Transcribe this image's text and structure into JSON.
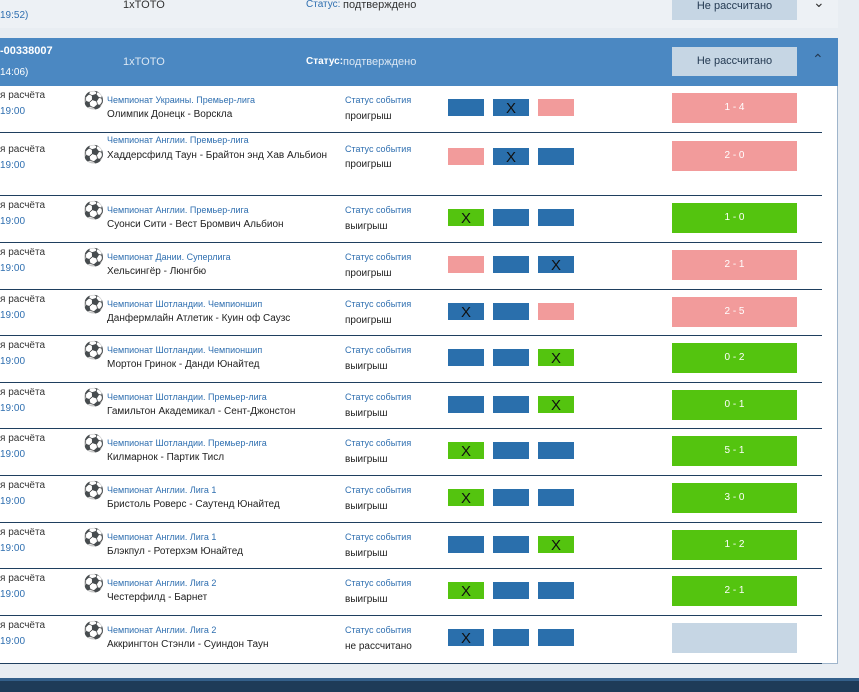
{
  "previous_coupon": {
    "time": "19:52)",
    "name": "1xTOTO",
    "status_label": "Статус:",
    "status_value": "подтверждено",
    "calc_label": "Не рассчитано",
    "chevron": "down"
  },
  "coupon": {
    "id": "-00338007",
    "time": "14:06)",
    "name": "1xTOTO",
    "status_label": "Статус:",
    "status_value": "подтверждено",
    "calc_label": "Не рассчитано",
    "chevron": "up"
  },
  "colors": {
    "blue": "#2a6fac",
    "red": "#f29b9b",
    "green": "#54c40f",
    "header": "#4b88c2",
    "pending": "#c6d6e4"
  },
  "events": [
    {
      "d1": "я расчёта",
      "d2": "19:00",
      "league": "Чемпионат Украины. Премьер-лига",
      "match": "Олимпик Донецк - Ворскла",
      "status_label": "Статус события",
      "status": "проигрыш",
      "cells": [
        {
          "c": "blue",
          "x": ""
        },
        {
          "c": "blue",
          "x": "X"
        },
        {
          "c": "red",
          "x": ""
        }
      ],
      "result": "1 - 4",
      "result_color": "red"
    },
    {
      "d1": "я расчёта",
      "d2": "19:00",
      "league": "Чемпионат Англии. Премьер-лига",
      "match": "Хаддерсфилд Таун - Брайтон энд Хав Альбион",
      "status_label": "Статус события",
      "status": "проигрыш",
      "cells": [
        {
          "c": "red",
          "x": ""
        },
        {
          "c": "blue",
          "x": "X"
        },
        {
          "c": "blue",
          "x": ""
        }
      ],
      "result": "2 - 0",
      "result_color": "red"
    },
    {
      "d1": "я расчёта",
      "d2": "19:00",
      "league": "Чемпионат Англии. Премьер-лига",
      "match": "Суонси Сити - Вест Бромвич Альбион",
      "status_label": "Статус события",
      "status": "выигрыш",
      "cells": [
        {
          "c": "green",
          "x": "X"
        },
        {
          "c": "blue",
          "x": ""
        },
        {
          "c": "blue",
          "x": ""
        }
      ],
      "result": "1 - 0",
      "result_color": "green"
    },
    {
      "d1": "я расчёта",
      "d2": "19:00",
      "league": "Чемпионат Дании. Суперлига",
      "match": "Хельсингёр - Люнгбю",
      "status_label": "Статус события",
      "status": "проигрыш",
      "cells": [
        {
          "c": "red",
          "x": ""
        },
        {
          "c": "blue",
          "x": ""
        },
        {
          "c": "blue",
          "x": "X"
        }
      ],
      "result": "2 - 1",
      "result_color": "red"
    },
    {
      "d1": "я расчёта",
      "d2": "19:00",
      "league": "Чемпионат Шотландии. Чемпионшип",
      "match": "Данфермлайн Атлетик - Куин оф Саузс",
      "status_label": "Статус события",
      "status": "проигрыш",
      "cells": [
        {
          "c": "blue",
          "x": "X"
        },
        {
          "c": "blue",
          "x": ""
        },
        {
          "c": "red",
          "x": ""
        }
      ],
      "result": "2 - 5",
      "result_color": "red"
    },
    {
      "d1": "я расчёта",
      "d2": "19:00",
      "league": "Чемпионат Шотландии. Чемпионшип",
      "match": "Мортон Гринок - Данди Юнайтед",
      "status_label": "Статус события",
      "status": "выигрыш",
      "cells": [
        {
          "c": "blue",
          "x": ""
        },
        {
          "c": "blue",
          "x": ""
        },
        {
          "c": "green",
          "x": "X"
        }
      ],
      "result": "0 - 2",
      "result_color": "green"
    },
    {
      "d1": "я расчёта",
      "d2": "19:00",
      "league": "Чемпионат Шотландии. Премьер-лига",
      "match": "Гамильтон Академикал - Сент-Джонстон",
      "status_label": "Статус события",
      "status": "выигрыш",
      "cells": [
        {
          "c": "blue",
          "x": ""
        },
        {
          "c": "blue",
          "x": ""
        },
        {
          "c": "green",
          "x": "X"
        }
      ],
      "result": "0 - 1",
      "result_color": "green"
    },
    {
      "d1": "я расчёта",
      "d2": "19:00",
      "league": "Чемпионат Шотландии. Премьер-лига",
      "match": "Килмарнок - Партик Тисл",
      "status_label": "Статус события",
      "status": "выигрыш",
      "cells": [
        {
          "c": "green",
          "x": "X"
        },
        {
          "c": "blue",
          "x": ""
        },
        {
          "c": "blue",
          "x": ""
        }
      ],
      "result": "5 - 1",
      "result_color": "green"
    },
    {
      "d1": "я расчёта",
      "d2": "19:00",
      "league": "Чемпионат Англии. Лига 1",
      "match": "Бристоль Роверс - Саутенд Юнайтед",
      "status_label": "Статус события",
      "status": "выигрыш",
      "cells": [
        {
          "c": "green",
          "x": "X"
        },
        {
          "c": "blue",
          "x": ""
        },
        {
          "c": "blue",
          "x": ""
        }
      ],
      "result": "3 - 0",
      "result_color": "green"
    },
    {
      "d1": "я расчёта",
      "d2": "19:00",
      "league": "Чемпионат Англии. Лига 1",
      "match": "Блэкпул - Ротерхэм Юнайтед",
      "status_label": "Статус события",
      "status": "выигрыш",
      "cells": [
        {
          "c": "blue",
          "x": ""
        },
        {
          "c": "blue",
          "x": ""
        },
        {
          "c": "green",
          "x": "X"
        }
      ],
      "result": "1 - 2",
      "result_color": "green"
    },
    {
      "d1": "я расчёта",
      "d2": "19:00",
      "league": "Чемпионат Англии. Лига 2",
      "match": "Честерфилд - Барнет",
      "status_label": "Статус события",
      "status": "выигрыш",
      "cells": [
        {
          "c": "green",
          "x": "X"
        },
        {
          "c": "blue",
          "x": ""
        },
        {
          "c": "blue",
          "x": ""
        }
      ],
      "result": "2 - 1",
      "result_color": "green"
    },
    {
      "d1": "я расчёта",
      "d2": "19:00",
      "league": "Чемпионат Англии. Лига 2",
      "match": "Аккрингтон Стэнли - Суиндон Таун",
      "status_label": "Статус события",
      "status": "не рассчитано",
      "cells": [
        {
          "c": "blue",
          "x": "X"
        },
        {
          "c": "blue",
          "x": ""
        },
        {
          "c": "blue",
          "x": ""
        }
      ],
      "result": "",
      "result_color": "none"
    }
  ]
}
